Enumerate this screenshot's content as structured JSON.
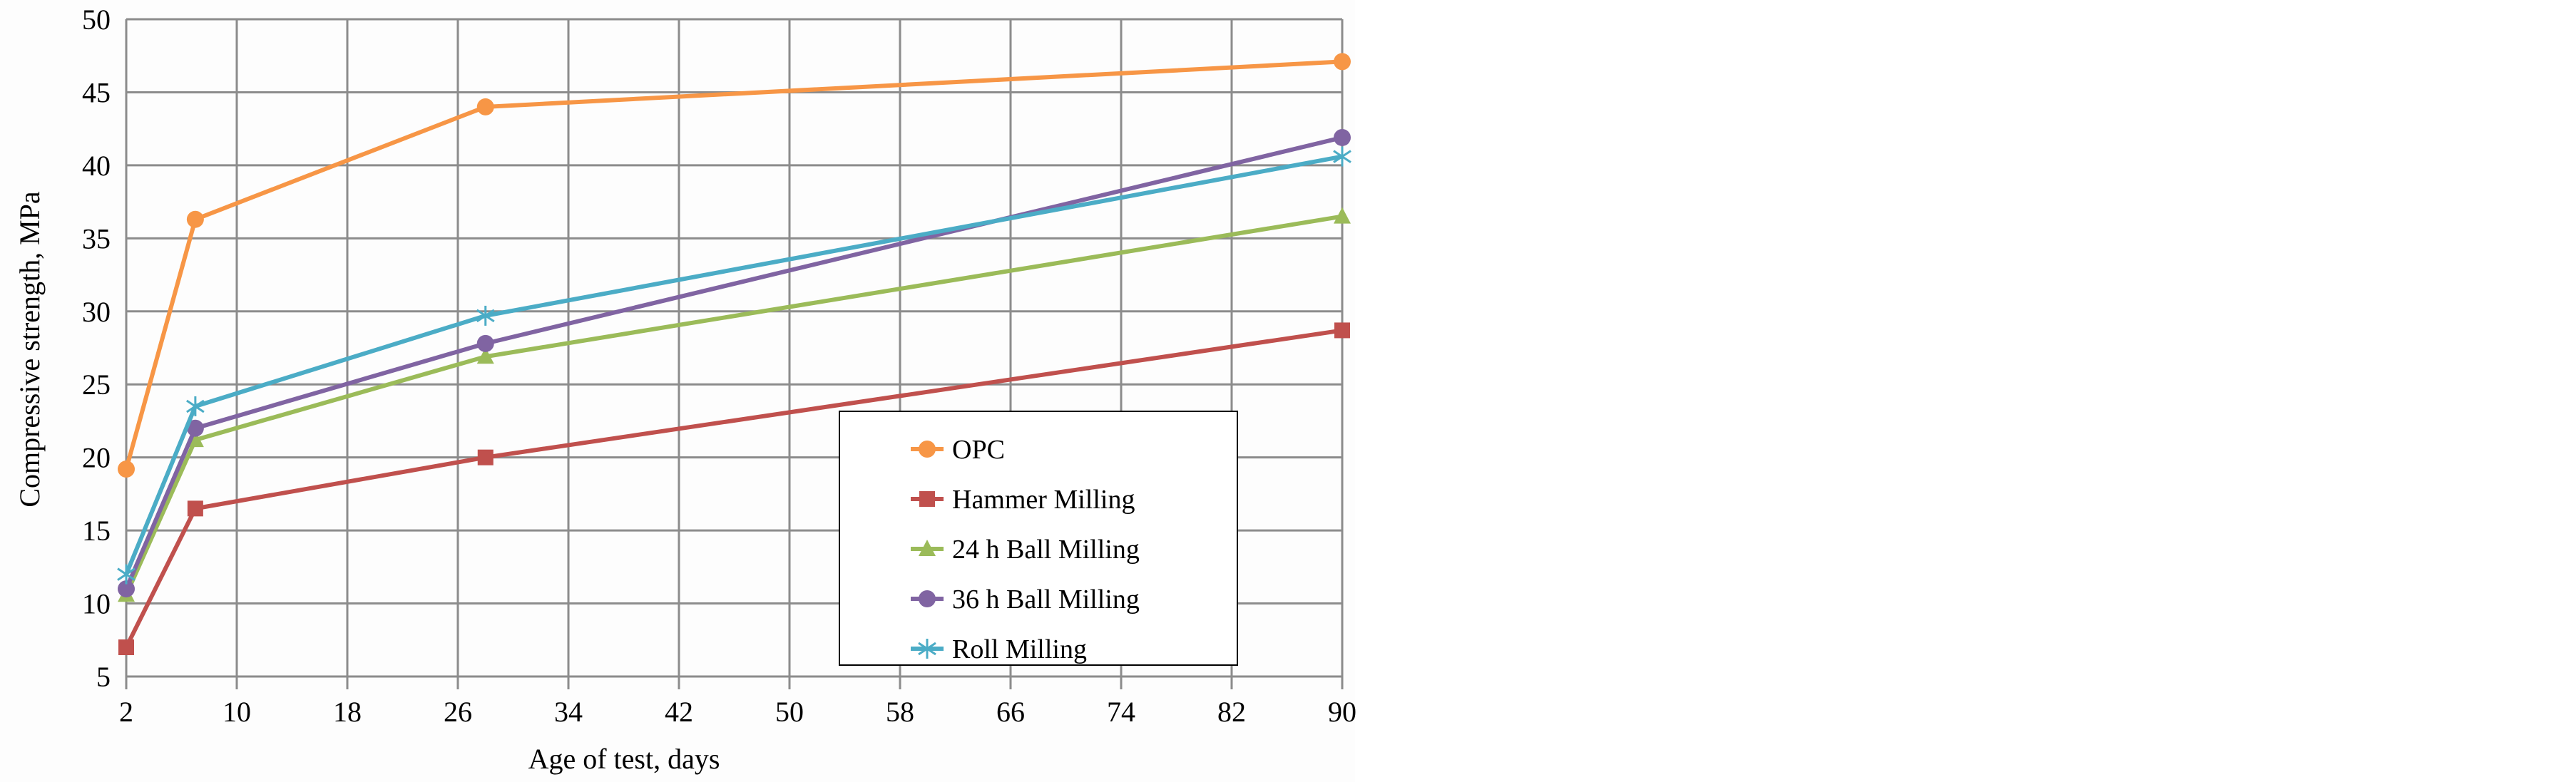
{
  "chart_data": {
    "type": "line",
    "title": "",
    "xlabel": "Age of test, days",
    "ylabel": "Compressive strength, MPa",
    "xlim": [
      2,
      90
    ],
    "ylim": [
      5,
      50
    ],
    "xticks": [
      2,
      10,
      18,
      26,
      34,
      42,
      50,
      58,
      66,
      74,
      82,
      90
    ],
    "yticks": [
      5,
      10,
      15,
      20,
      25,
      30,
      35,
      40,
      45,
      50
    ],
    "grid": true,
    "legend_position": "lower-right",
    "x": [
      2,
      7,
      28,
      90
    ],
    "series": [
      {
        "name": "OPC",
        "color": "#F79646",
        "marker": "circle",
        "values": [
          19.2,
          36.3,
          44.0,
          47.1
        ]
      },
      {
        "name": "Hammer Milling",
        "color": "#C0504D",
        "marker": "square",
        "values": [
          7.0,
          16.5,
          20.0,
          28.7
        ]
      },
      {
        "name": "24 h Ball Milling",
        "color": "#9BBB59",
        "marker": "triangle",
        "values": [
          10.6,
          21.2,
          26.9,
          36.5
        ]
      },
      {
        "name": "36 h Ball Milling",
        "color": "#8064A2",
        "marker": "circle",
        "values": [
          11.0,
          22.0,
          27.8,
          41.9
        ]
      },
      {
        "name": "Roll Milling",
        "color": "#4BACC6",
        "marker": "star",
        "values": [
          12.0,
          23.5,
          29.7,
          40.6
        ]
      }
    ]
  }
}
